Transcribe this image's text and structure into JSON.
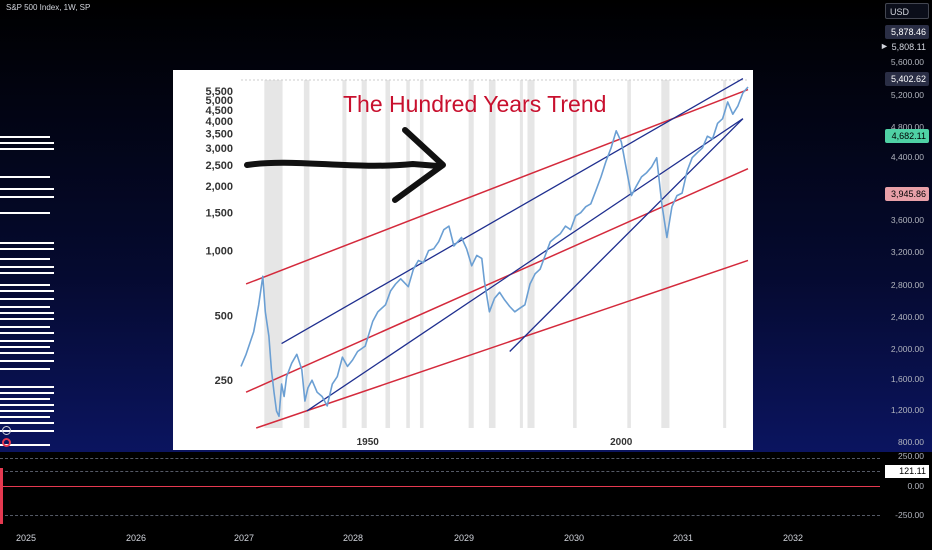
{
  "header": {
    "symbol_title": "S&P 500 Index, 1W, SP",
    "currency": "USD"
  },
  "price_axis": {
    "ticks": [
      "5,600.00",
      "5,200.00",
      "4,800.00",
      "4,400.00",
      "3,945.86",
      "3,600.00",
      "3,200.00",
      "2,800.00",
      "2,400.00",
      "2,000.00",
      "1,600.00",
      "1,200.00",
      "800.00"
    ],
    "boxes": [
      {
        "label": "5,878.46",
        "bg": "#2a2e45",
        "fg": "#ffffff"
      },
      {
        "label": "5,808.11",
        "bg": "transparent",
        "fg": "#d1d4dc"
      },
      {
        "label": "5,402.62",
        "bg": "#2a2e45",
        "fg": "#ffffff"
      },
      {
        "label": "4,682.11",
        "bg": "#4fd1a5",
        "fg": "#000000"
      },
      {
        "label": "3,945.86",
        "bg": "#e8a0a8",
        "fg": "#000000"
      }
    ]
  },
  "indicator": {
    "ticks": [
      "250.00",
      "121.11",
      "0.00",
      "-250.00"
    ],
    "value_color": "#e53950"
  },
  "time_axis": {
    "labels": [
      "2025",
      "2026",
      "2027",
      "2028",
      "2029",
      "2030",
      "2031",
      "2032"
    ]
  },
  "chart_data": {
    "type": "line",
    "title": "The Hundred Years Trend",
    "xlabel": "",
    "ylabel": "",
    "yscale": "log",
    "ylim": [
      150,
      6200
    ],
    "x_ticks": [
      "1950",
      "2000"
    ],
    "y_ticks": [
      "5,500",
      "5,000",
      "4,500",
      "4,000",
      "3,500",
      "3,000",
      "2,500",
      "2,000",
      "1,500",
      "1,000",
      "500",
      "250"
    ],
    "series": [
      {
        "color": "#6b9fd3",
        "x": [
          1925.0,
          1926.0,
          1927.5,
          1928.5,
          1929.3,
          1929.8,
          1930.5,
          1931.0,
          1931.5,
          1932.0,
          1932.5,
          1933.0,
          1933.5,
          1934.0,
          1935.0,
          1936.0,
          1937.0,
          1937.6,
          1938.2,
          1939.0,
          1940.0,
          1941.0,
          1942.0,
          1943.0,
          1944.0,
          1945.0,
          1946.0,
          1947.0,
          1948.0,
          1949.5,
          1951.0,
          1952.0,
          1953.5,
          1954.5,
          1955.5,
          1956.5,
          1958.0,
          1959.0,
          1960.0,
          1961.0,
          1962.0,
          1963.0,
          1964.0,
          1965.0,
          1966.0,
          1967.0,
          1968.5,
          1969.5,
          1970.5,
          1971.5,
          1972.5,
          1973.0,
          1974.0,
          1975.0,
          1976.0,
          1977.0,
          1978.0,
          1979.0,
          1980.0,
          1981.0,
          1982.0,
          1983.0,
          1984.0,
          1985.0,
          1986.0,
          1987.0,
          1988.0,
          1989.0,
          1990.0,
          1991.0,
          1992.0,
          1993.0,
          1994.0,
          1995.0,
          1996.0,
          1997.0,
          1998.0,
          1999.0,
          2000.0,
          2001.0,
          2002.0,
          2003.0,
          2004.0,
          2005.0,
          2006.0,
          2007.0,
          2008.0,
          2009.0,
          2010.0,
          2011.0,
          2012.0,
          2013.0,
          2014.0,
          2015.0,
          2016.0,
          2017.0,
          2018.0,
          2019.0,
          2020.0,
          2021.0,
          2022.0,
          2023.0,
          2024.0,
          2025.0
        ],
        "y": [
          290,
          330,
          420,
          560,
          760,
          520,
          400,
          280,
          220,
          180,
          170,
          240,
          210,
          260,
          300,
          330,
          280,
          200,
          230,
          250,
          220,
          210,
          190,
          240,
          260,
          320,
          290,
          310,
          340,
          360,
          470,
          520,
          560,
          650,
          700,
          740,
          680,
          820,
          900,
          880,
          1000,
          1020,
          1100,
          1250,
          1300,
          1050,
          1150,
          1020,
          850,
          950,
          920,
          720,
          520,
          600,
          640,
          590,
          550,
          520,
          540,
          560,
          700,
          780,
          820,
          950,
          1100,
          1150,
          1200,
          1300,
          1250,
          1450,
          1500,
          1600,
          1650,
          1900,
          2200,
          2600,
          3000,
          3600,
          3200,
          2400,
          1800,
          2000,
          2200,
          2300,
          2450,
          2700,
          1650,
          1150,
          1600,
          1800,
          1850,
          2350,
          2700,
          2850,
          3000,
          3400,
          3300,
          3900,
          4100,
          4900,
          4300,
          4700,
          5400,
          5750
        ]
      }
    ]
  }
}
